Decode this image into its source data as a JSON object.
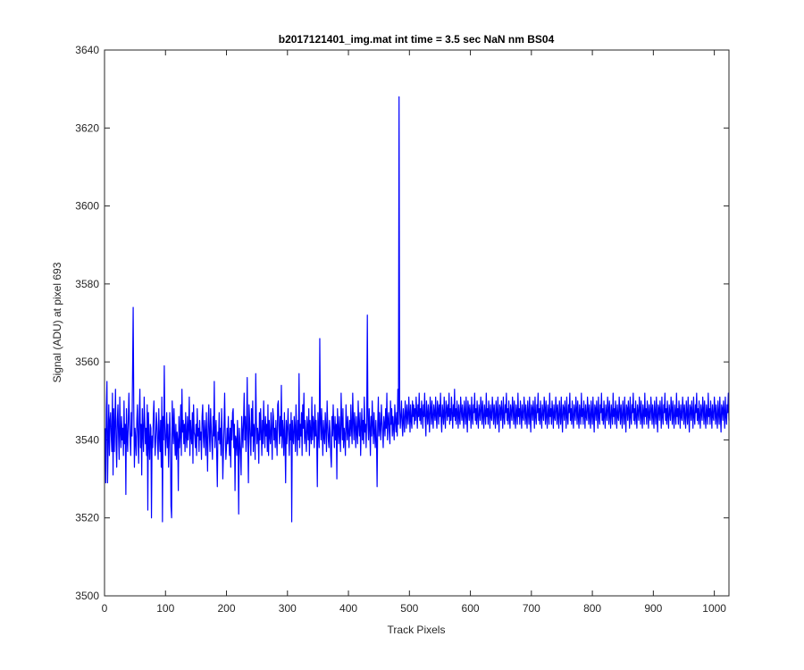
{
  "chart_data": {
    "type": "line",
    "title": "b2017121401_img.mat int time = 3.5 sec  NaN nm BS04",
    "xlabel": "Track Pixels",
    "ylabel": "Signal (ADU) at pixel 693",
    "xlim": [
      0,
      1024
    ],
    "ylim": [
      3500,
      3640
    ],
    "xticks": [
      0,
      100,
      200,
      300,
      400,
      500,
      600,
      700,
      800,
      900,
      1000
    ],
    "yticks": [
      3500,
      3520,
      3540,
      3560,
      3580,
      3600,
      3620,
      3640
    ],
    "grid": false,
    "line_color": "#0000ff",
    "series": [
      {
        "name": "",
        "x_start": 1,
        "x_step": 1,
        "values": [
          3543,
          3529,
          3548,
          3555,
          3529,
          3540,
          3549,
          3536,
          3545,
          3547,
          3541,
          3537,
          3552,
          3531,
          3548,
          3537,
          3544,
          3553,
          3539,
          3533,
          3545,
          3549,
          3541,
          3535,
          3551,
          3542,
          3538,
          3546,
          3540,
          3543,
          3536,
          3550,
          3539,
          3544,
          3526,
          3548,
          3541,
          3537,
          3545,
          3552,
          3544,
          3540,
          3536,
          3547,
          3541,
          3557,
          3574,
          3548,
          3533,
          3543,
          3540,
          3536,
          3545,
          3549,
          3541,
          3534,
          3546,
          3553,
          3538,
          3544,
          3531,
          3548,
          3542,
          3537,
          3551,
          3545,
          3539,
          3543,
          3536,
          3549,
          3522,
          3547,
          3540,
          3535,
          3544,
          3543,
          3520,
          3541,
          3538,
          3546,
          3550,
          3542,
          3536,
          3540,
          3547,
          3544,
          3539,
          3535,
          3548,
          3541,
          3537,
          3545,
          3533,
          3551,
          3519,
          3546,
          3540,
          3559,
          3543,
          3536,
          3541,
          3547,
          3538,
          3544,
          3533,
          3540,
          3547,
          3541,
          3523,
          3520,
          3550,
          3545,
          3539,
          3548,
          3541,
          3536,
          3544,
          3535,
          3542,
          3540,
          3527,
          3546,
          3538,
          3541,
          3549,
          3536,
          3553,
          3542,
          3545,
          3539,
          3544,
          3537,
          3547,
          3541,
          3538,
          3546,
          3540,
          3543,
          3551,
          3536,
          3545,
          3541,
          3539,
          3547,
          3534,
          3549,
          3542,
          3541,
          3538,
          3544,
          3536,
          3548,
          3541,
          3543,
          3537,
          3545,
          3540,
          3542,
          3535,
          3546,
          3549,
          3541,
          3538,
          3545,
          3542,
          3536,
          3547,
          3540,
          3532,
          3544,
          3549,
          3541,
          3537,
          3548,
          3543,
          3539,
          3535,
          3546,
          3541,
          3555,
          3538,
          3542,
          3545,
          3536,
          3528,
          3542,
          3540,
          3547,
          3539,
          3543,
          3536,
          3548,
          3541,
          3530,
          3537,
          3544,
          3552,
          3541,
          3535,
          3538,
          3543,
          3539,
          3546,
          3540,
          3536,
          3543,
          3533,
          3545,
          3540,
          3547,
          3548,
          3538,
          3544,
          3527,
          3541,
          3540,
          3536,
          3545,
          3539,
          3521,
          3543,
          3540,
          3536,
          3531,
          3546,
          3542,
          3538,
          3545,
          3552,
          3540,
          3546,
          3537,
          3543,
          3556,
          3539,
          3529,
          3549,
          3545,
          3540,
          3536,
          3548,
          3541,
          3550,
          3537,
          3544,
          3542,
          3535,
          3557,
          3545,
          3539,
          3543,
          3541,
          3534,
          3547,
          3540,
          3548,
          3542,
          3536,
          3545,
          3539,
          3550,
          3543,
          3538,
          3546,
          3541,
          3544,
          3537,
          3549,
          3536,
          3545,
          3541,
          3539,
          3547,
          3542,
          3535,
          3548,
          3546,
          3540,
          3543,
          3538,
          3545,
          3541,
          3536,
          3549,
          3550,
          3543,
          3539,
          3546,
          3541,
          3554,
          3538,
          3545,
          3542,
          3536,
          3547,
          3540,
          3529,
          3545,
          3539,
          3543,
          3548,
          3541,
          3536,
          3544,
          3540,
          3547,
          3519,
          3545,
          3541,
          3539,
          3546,
          3543,
          3537,
          3549,
          3542,
          3536,
          3545,
          3540,
          3557,
          3538,
          3544,
          3541,
          3547,
          3536,
          3549,
          3543,
          3552,
          3539,
          3545,
          3541,
          3537,
          3546,
          3543,
          3540,
          3548,
          3536,
          3545,
          3542,
          3539,
          3551,
          3540,
          3546,
          3544,
          3538,
          3549,
          3541,
          3545,
          3540,
          3528,
          3547,
          3542,
          3538,
          3566,
          3544,
          3540,
          3548,
          3542,
          3536,
          3545,
          3541,
          3539,
          3547,
          3543,
          3537,
          3550,
          3544,
          3540,
          3538,
          3545,
          3542,
          3536,
          3533,
          3546,
          3541,
          3549,
          3543,
          3538,
          3546,
          3540,
          3544,
          3530,
          3548,
          3543,
          3539,
          3546,
          3541,
          3537,
          3552,
          3545,
          3540,
          3548,
          3538,
          3543,
          3541,
          3536,
          3549,
          3544,
          3540,
          3546,
          3542,
          3538,
          3545,
          3541,
          3549,
          3543,
          3539,
          3552,
          3545,
          3540,
          3547,
          3543,
          3538,
          3546,
          3542,
          3539,
          3550,
          3544,
          3541,
          3547,
          3536,
          3543,
          3548,
          3540,
          3545,
          3539,
          3551,
          3542,
          3544,
          3538,
          3546,
          3572,
          3544,
          3540,
          3548,
          3543,
          3536,
          3546,
          3541,
          3550,
          3544,
          3539,
          3547,
          3542,
          3538,
          3545,
          3540,
          3528,
          3544,
          3551,
          3541,
          3547,
          3543,
          3540,
          3549,
          3545,
          3542,
          3538,
          3546,
          3544,
          3541,
          3548,
          3543,
          3552,
          3540,
          3545,
          3547,
          3542,
          3539,
          3550,
          3544,
          3548,
          3541,
          3546,
          3543,
          3540,
          3549,
          3545,
          3542,
          3547,
          3541,
          3553,
          3544,
          3628,
          3548,
          3543,
          3546,
          3550,
          3544,
          3541,
          3548,
          3545,
          3542,
          3550,
          3547,
          3543,
          3549,
          3546,
          3544,
          3551,
          3547,
          3542,
          3549,
          3545,
          3543,
          3550,
          3546,
          3549,
          3544,
          3548,
          3545,
          3551,
          3547,
          3543,
          3549,
          3546,
          3552,
          3545,
          3548,
          3544,
          3550,
          3547,
          3543,
          3549,
          3546,
          3552,
          3545,
          3541,
          3550,
          3547,
          3544,
          3549,
          3546,
          3542,
          3551,
          3548,
          3544,
          3550,
          3546,
          3543,
          3549,
          3547,
          3545,
          3551,
          3546,
          3543,
          3550,
          3548,
          3544,
          3549,
          3546,
          3552,
          3545,
          3542,
          3549,
          3547,
          3544,
          3551,
          3546,
          3543,
          3550,
          3548,
          3545,
          3549,
          3546,
          3552,
          3544,
          3548,
          3545,
          3551,
          3547,
          3543,
          3549,
          3546,
          3553,
          3545,
          3548,
          3544,
          3550,
          3547,
          3543,
          3549,
          3546,
          3544,
          3551,
          3548,
          3545,
          3549,
          3546,
          3543,
          3550,
          3547,
          3544,
          3551,
          3546,
          3542,
          3550,
          3548,
          3545,
          3549,
          3547,
          3543,
          3551,
          3546,
          3544,
          3549,
          3547,
          3552,
          3545,
          3548,
          3544,
          3550,
          3546,
          3543,
          3549,
          3547,
          3545,
          3551,
          3548,
          3544,
          3550,
          3546,
          3543,
          3549,
          3547,
          3544,
          3552,
          3546,
          3548,
          3544,
          3550,
          3547,
          3543,
          3549,
          3546,
          3545,
          3551,
          3548,
          3544,
          3549,
          3546,
          3543,
          3550,
          3547,
          3544,
          3551,
          3546,
          3542,
          3549,
          3548,
          3545,
          3550,
          3547,
          3543,
          3551,
          3546,
          3544,
          3549,
          3547,
          3552,
          3545,
          3548,
          3544,
          3550,
          3546,
          3543,
          3549,
          3547,
          3545,
          3551,
          3548,
          3544,
          3550,
          3546,
          3543,
          3549,
          3547,
          3544,
          3552,
          3546,
          3548,
          3544,
          3550,
          3547,
          3543,
          3549,
          3546,
          3545,
          3551,
          3548,
          3544,
          3549,
          3546,
          3543,
          3550,
          3547,
          3544,
          3551,
          3546,
          3542,
          3549,
          3548,
          3545,
          3550,
          3547,
          3543,
          3551,
          3546,
          3544,
          3549,
          3547,
          3552,
          3545,
          3548,
          3544,
          3550,
          3546,
          3543,
          3549,
          3547,
          3545,
          3551,
          3548,
          3544,
          3550,
          3546,
          3543,
          3549,
          3547,
          3544,
          3552,
          3546,
          3548,
          3544,
          3550,
          3547,
          3543,
          3549,
          3546,
          3545,
          3551,
          3548,
          3544,
          3549,
          3546,
          3543,
          3550,
          3547,
          3544,
          3551,
          3546,
          3542,
          3549,
          3548,
          3545,
          3550,
          3547,
          3543,
          3551,
          3546,
          3544,
          3549,
          3547,
          3552,
          3545,
          3548,
          3544,
          3550,
          3546,
          3543,
          3549,
          3547,
          3545,
          3551,
          3548,
          3544,
          3550,
          3546,
          3543,
          3549,
          3547,
          3544,
          3552,
          3546,
          3548,
          3544,
          3550,
          3547,
          3543,
          3549,
          3546,
          3545,
          3551,
          3548,
          3544,
          3549,
          3546,
          3543,
          3550,
          3547,
          3544,
          3551,
          3546,
          3542,
          3549,
          3548,
          3545,
          3550,
          3547,
          3543,
          3551,
          3546,
          3544,
          3549,
          3547,
          3552,
          3545,
          3548,
          3544,
          3550,
          3546,
          3543,
          3549,
          3547,
          3545,
          3551,
          3548,
          3544,
          3550,
          3546,
          3543,
          3549,
          3547,
          3544,
          3552,
          3546,
          3548,
          3544,
          3550,
          3547,
          3543,
          3549,
          3546,
          3545,
          3551,
          3548,
          3544,
          3549,
          3546,
          3543,
          3550,
          3547,
          3544,
          3551,
          3546,
          3542,
          3549,
          3548,
          3545,
          3550,
          3547,
          3543,
          3551,
          3546,
          3544,
          3549,
          3547,
          3552,
          3545,
          3548,
          3544,
          3550,
          3546,
          3543,
          3549,
          3547,
          3545,
          3551,
          3548,
          3544,
          3550,
          3546,
          3543,
          3549,
          3547,
          3544,
          3552,
          3546,
          3548,
          3544,
          3550,
          3547,
          3543,
          3549,
          3546,
          3545,
          3551,
          3548,
          3544,
          3549,
          3546,
          3543,
          3550,
          3547,
          3544,
          3551,
          3546,
          3542,
          3549,
          3548,
          3545,
          3550,
          3547,
          3543,
          3551,
          3546,
          3544,
          3549,
          3547,
          3552,
          3545,
          3548,
          3544,
          3550,
          3546,
          3543,
          3549,
          3547,
          3545,
          3551,
          3548,
          3544,
          3550,
          3546,
          3543,
          3549,
          3547,
          3544,
          3552,
          3546,
          3548,
          3544,
          3550,
          3547,
          3543,
          3549,
          3546,
          3545,
          3551,
          3548,
          3544,
          3549,
          3546,
          3543,
          3550,
          3547,
          3544,
          3551,
          3546,
          3542,
          3549,
          3548,
          3545,
          3550,
          3547,
          3543,
          3551,
          3546,
          3544,
          3549,
          3547,
          3552,
          3545,
          3548,
          3544,
          3550,
          3546,
          3543,
          3549,
          3547,
          3545,
          3551,
          3548,
          3544,
          3550,
          3546,
          3543,
          3549,
          3547,
          3544,
          3552,
          3546,
          3548,
          3544,
          3550,
          3547,
          3543,
          3549,
          3546,
          3545,
          3551,
          3548,
          3544,
          3549,
          3546,
          3543,
          3550,
          3547,
          3544,
          3551,
          3546,
          3542,
          3549,
          3548,
          3545,
          3550,
          3547,
          3543,
          3551,
          3546,
          3544,
          3549,
          3547,
          3552,
          3545
        ]
      }
    ]
  }
}
